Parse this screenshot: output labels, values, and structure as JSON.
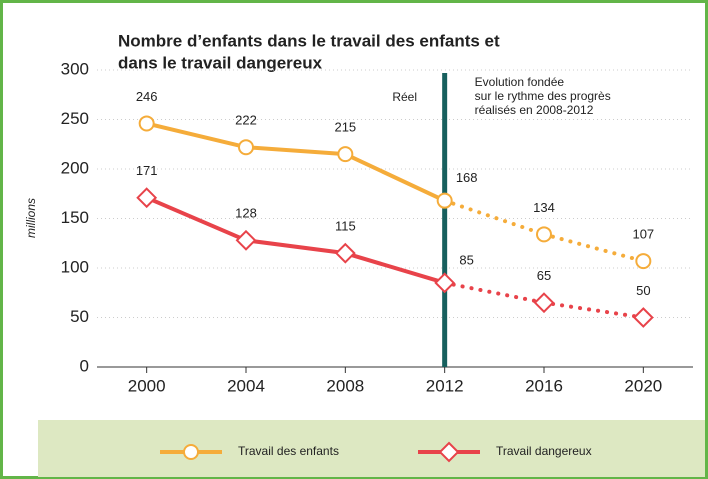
{
  "chart_data": {
    "type": "line",
    "title": [
      "Nombre d’enfants dans le travail des enfants et",
      "dans le travail dangereux"
    ],
    "y_label": "millions",
    "x": [
      2000,
      2004,
      2008,
      2012,
      2016,
      2020
    ],
    "series": [
      {
        "name": "Travail des enfants",
        "color": "#f5ac3a",
        "marker": "circle",
        "values": [
          246,
          222,
          215,
          168,
          134,
          107
        ]
      },
      {
        "name": "Travail dangereux",
        "color": "#e8434a",
        "marker": "diamond",
        "values": [
          171,
          128,
          115,
          85,
          65,
          50
        ]
      }
    ],
    "divider": {
      "x": 2012,
      "color": "#17605e",
      "left_label": "Réel",
      "right_label": [
        "Evolution fondée",
        "sur le rythme des progrès",
        "réalisés en 2008-2012"
      ]
    },
    "xlim": [
      1998,
      2022
    ],
    "xticks": [
      2000,
      2004,
      2008,
      2012,
      2016,
      2020
    ],
    "ylim": [
      0,
      300
    ],
    "yticks": [
      0,
      50,
      100,
      150,
      200,
      250,
      300
    ],
    "grid": true
  }
}
